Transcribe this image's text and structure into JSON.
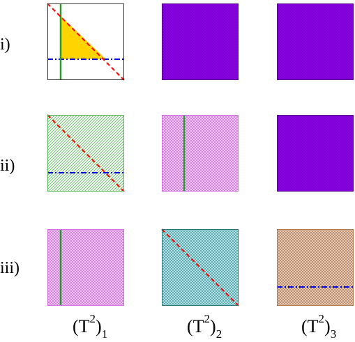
{
  "row_labels": [
    "i)",
    "ii)",
    "iii)"
  ],
  "column_labels": [
    {
      "base": "(T",
      "sup": "2",
      "close": ")",
      "sub": "1"
    },
    {
      "base": "(T",
      "sup": "2",
      "close": ")",
      "sub": "2"
    },
    {
      "base": "(T",
      "sup": "2",
      "close": ")",
      "sub": "3"
    }
  ],
  "colors": {
    "purple_fill": "#8a00e6",
    "green_hatch": "#5cb85c",
    "pink_hatch": "#d070e0",
    "teal_hatch": "#40a0a8",
    "brown_hatch": "#b07a55",
    "yellow_region": "#ffd400",
    "green_line": "#2a9a2a",
    "red_dashed_line": "#ff0000",
    "blue_dashdot_line": "#0000dd",
    "frame": "#333333"
  },
  "panels": [
    {
      "row": 0,
      "col": 0,
      "fill": "none",
      "yellow_triangle": true,
      "green_vertical": true,
      "red_diagonal": true,
      "blue_horizontal": true
    },
    {
      "row": 0,
      "col": 1,
      "fill": "purple",
      "green_vertical": false,
      "red_diagonal": false,
      "blue_horizontal": false
    },
    {
      "row": 0,
      "col": 2,
      "fill": "purple",
      "green_vertical": false,
      "red_diagonal": false,
      "blue_horizontal": false
    },
    {
      "row": 1,
      "col": 0,
      "fill": "green_hatch",
      "green_vertical": false,
      "red_diagonal": true,
      "blue_horizontal": true
    },
    {
      "row": 1,
      "col": 1,
      "fill": "pink_hatch",
      "green_vertical": true,
      "red_diagonal": false,
      "blue_horizontal": false
    },
    {
      "row": 1,
      "col": 2,
      "fill": "purple",
      "green_vertical": false,
      "red_diagonal": false,
      "blue_horizontal": false
    },
    {
      "row": 2,
      "col": 0,
      "fill": "pink_hatch",
      "green_vertical": true,
      "red_diagonal": false,
      "blue_horizontal": false
    },
    {
      "row": 2,
      "col": 1,
      "fill": "teal_hatch",
      "green_vertical": false,
      "red_diagonal": true,
      "blue_horizontal": false
    },
    {
      "row": 2,
      "col": 2,
      "fill": "brown_hatch",
      "green_vertical": false,
      "red_diagonal": false,
      "blue_horizontal": true
    }
  ]
}
